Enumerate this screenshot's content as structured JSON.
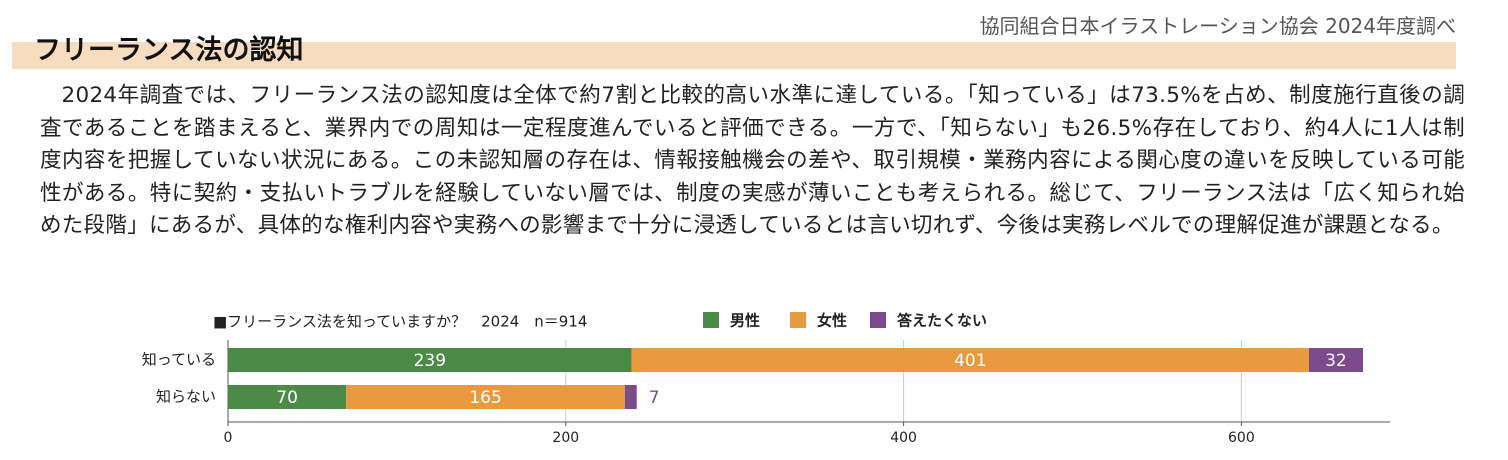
{
  "header": {
    "title": "フリーランス法の認知",
    "source": "協同組合日本イラストレーション協会 2024年度調べ"
  },
  "paragraph": "2024年調査では、フリーランス法の認知度は全体で約7割と比較的高い水準に達している。「知っている」は73.5%を占め、制度施行直後の調査であることを踏まえると、業界内での周知は一定程度進んでいると評価できる。一方で、「知らない」も26.5%存在しており、約4人に1人は制度内容を把握していない状況にある。この未認知層の存在は、情報接触機会の差や、取引規模・業務内容による関心度の違いを反映している可能性がある。特に契約・支払いトラブルを経験していない層では、制度の実感が薄いことも考えられる。総じて、フリーランス法は「広く知られ始めた段階」にあるが、具体的な権利内容や実務への影響まで十分に浸透しているとは言い切れず、今後は実務レベルでの理解促進が課題となる。",
  "chart_data": {
    "type": "stacked-bar",
    "orientation": "horizontal",
    "title": "■フリーランス法を知っていますか？　2024　n＝914",
    "categories": [
      "知っている",
      "知らない"
    ],
    "series": [
      {
        "name": "男性",
        "color": "#4b8a47",
        "values": [
          239,
          70
        ]
      },
      {
        "name": "女性",
        "color": "#e99a3e",
        "values": [
          401,
          165
        ]
      },
      {
        "name": "答えたくない",
        "color": "#7b4b8e",
        "values": [
          32,
          7
        ]
      }
    ],
    "xlim": [
      0,
      688
    ],
    "xticks": [
      0,
      200,
      400,
      600
    ],
    "grid": true
  }
}
